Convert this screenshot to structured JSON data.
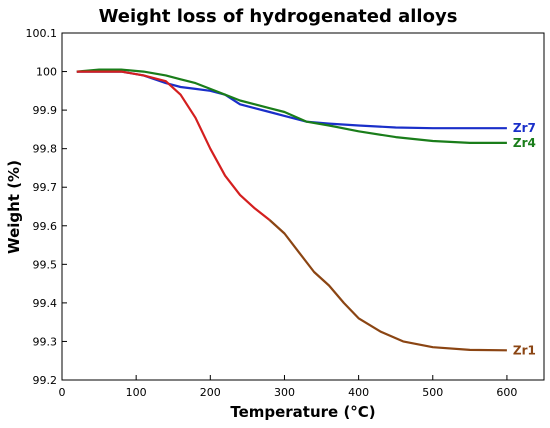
{
  "chart_data": {
    "type": "line",
    "title": "Weight  loss of hydrogenated alloys",
    "xlabel": "Temperature (°C)",
    "ylabel": "Weight (%)",
    "xlim": [
      0,
      650
    ],
    "ylim": [
      99.2,
      100.1
    ],
    "xticks": [
      {
        "value": 0,
        "label": "0"
      },
      {
        "value": 100,
        "label": "100"
      },
      {
        "value": 200,
        "label": "200"
      },
      {
        "value": 300,
        "label": "300"
      },
      {
        "value": 400,
        "label": "400"
      },
      {
        "value": 500,
        "label": "500"
      },
      {
        "value": 600,
        "label": "600"
      }
    ],
    "yticks": [
      {
        "value": 99.2,
        "label": "99.2"
      },
      {
        "value": 99.3,
        "label": "99.3"
      },
      {
        "value": 99.4,
        "label": "99.4"
      },
      {
        "value": 99.5,
        "label": "99.5"
      },
      {
        "value": 99.6,
        "label": "99.6"
      },
      {
        "value": 99.7,
        "label": "99.7"
      },
      {
        "value": 99.8,
        "label": "99.8"
      },
      {
        "value": 99.9,
        "label": "99.9"
      },
      {
        "value": 100,
        "label": "100"
      },
      {
        "value": 100.1,
        "label": "100.1"
      }
    ],
    "grid": false,
    "series": [
      {
        "name": "Zr7",
        "color": "#1a2fc9",
        "x": [
          20,
          50,
          80,
          110,
          140,
          160,
          180,
          200,
          220,
          240,
          260,
          280,
          300,
          330,
          360,
          400,
          450,
          500,
          550,
          600
        ],
        "y": [
          100.0,
          100.0,
          100.0,
          99.99,
          99.97,
          99.96,
          99.955,
          99.95,
          99.94,
          99.915,
          99.905,
          99.895,
          99.885,
          99.87,
          99.865,
          99.86,
          99.855,
          99.853,
          99.853,
          99.853
        ]
      },
      {
        "name": "Zr4",
        "color": "#1a7d1a",
        "x": [
          20,
          50,
          80,
          110,
          140,
          160,
          180,
          200,
          220,
          240,
          260,
          280,
          300,
          330,
          360,
          400,
          450,
          500,
          550,
          600
        ],
        "y": [
          100.0,
          100.005,
          100.005,
          100.0,
          99.99,
          99.98,
          99.97,
          99.955,
          99.94,
          99.925,
          99.915,
          99.905,
          99.895,
          99.87,
          99.86,
          99.845,
          99.83,
          99.82,
          99.815,
          99.815
        ]
      },
      {
        "name": "Zr1",
        "color": "#d41f1f",
        "color_late": "#8b4513",
        "x": [
          20,
          50,
          80,
          110,
          140,
          160,
          180,
          200,
          220,
          240,
          260,
          280,
          300,
          320,
          340,
          360,
          380,
          400,
          430,
          460,
          500,
          550,
          600
        ],
        "y": [
          100.0,
          100.0,
          100.0,
          99.99,
          99.975,
          99.94,
          99.88,
          99.8,
          99.73,
          99.68,
          99.645,
          99.615,
          99.58,
          99.53,
          99.48,
          99.445,
          99.4,
          99.36,
          99.325,
          99.3,
          99.285,
          99.278,
          99.277
        ]
      }
    ]
  }
}
